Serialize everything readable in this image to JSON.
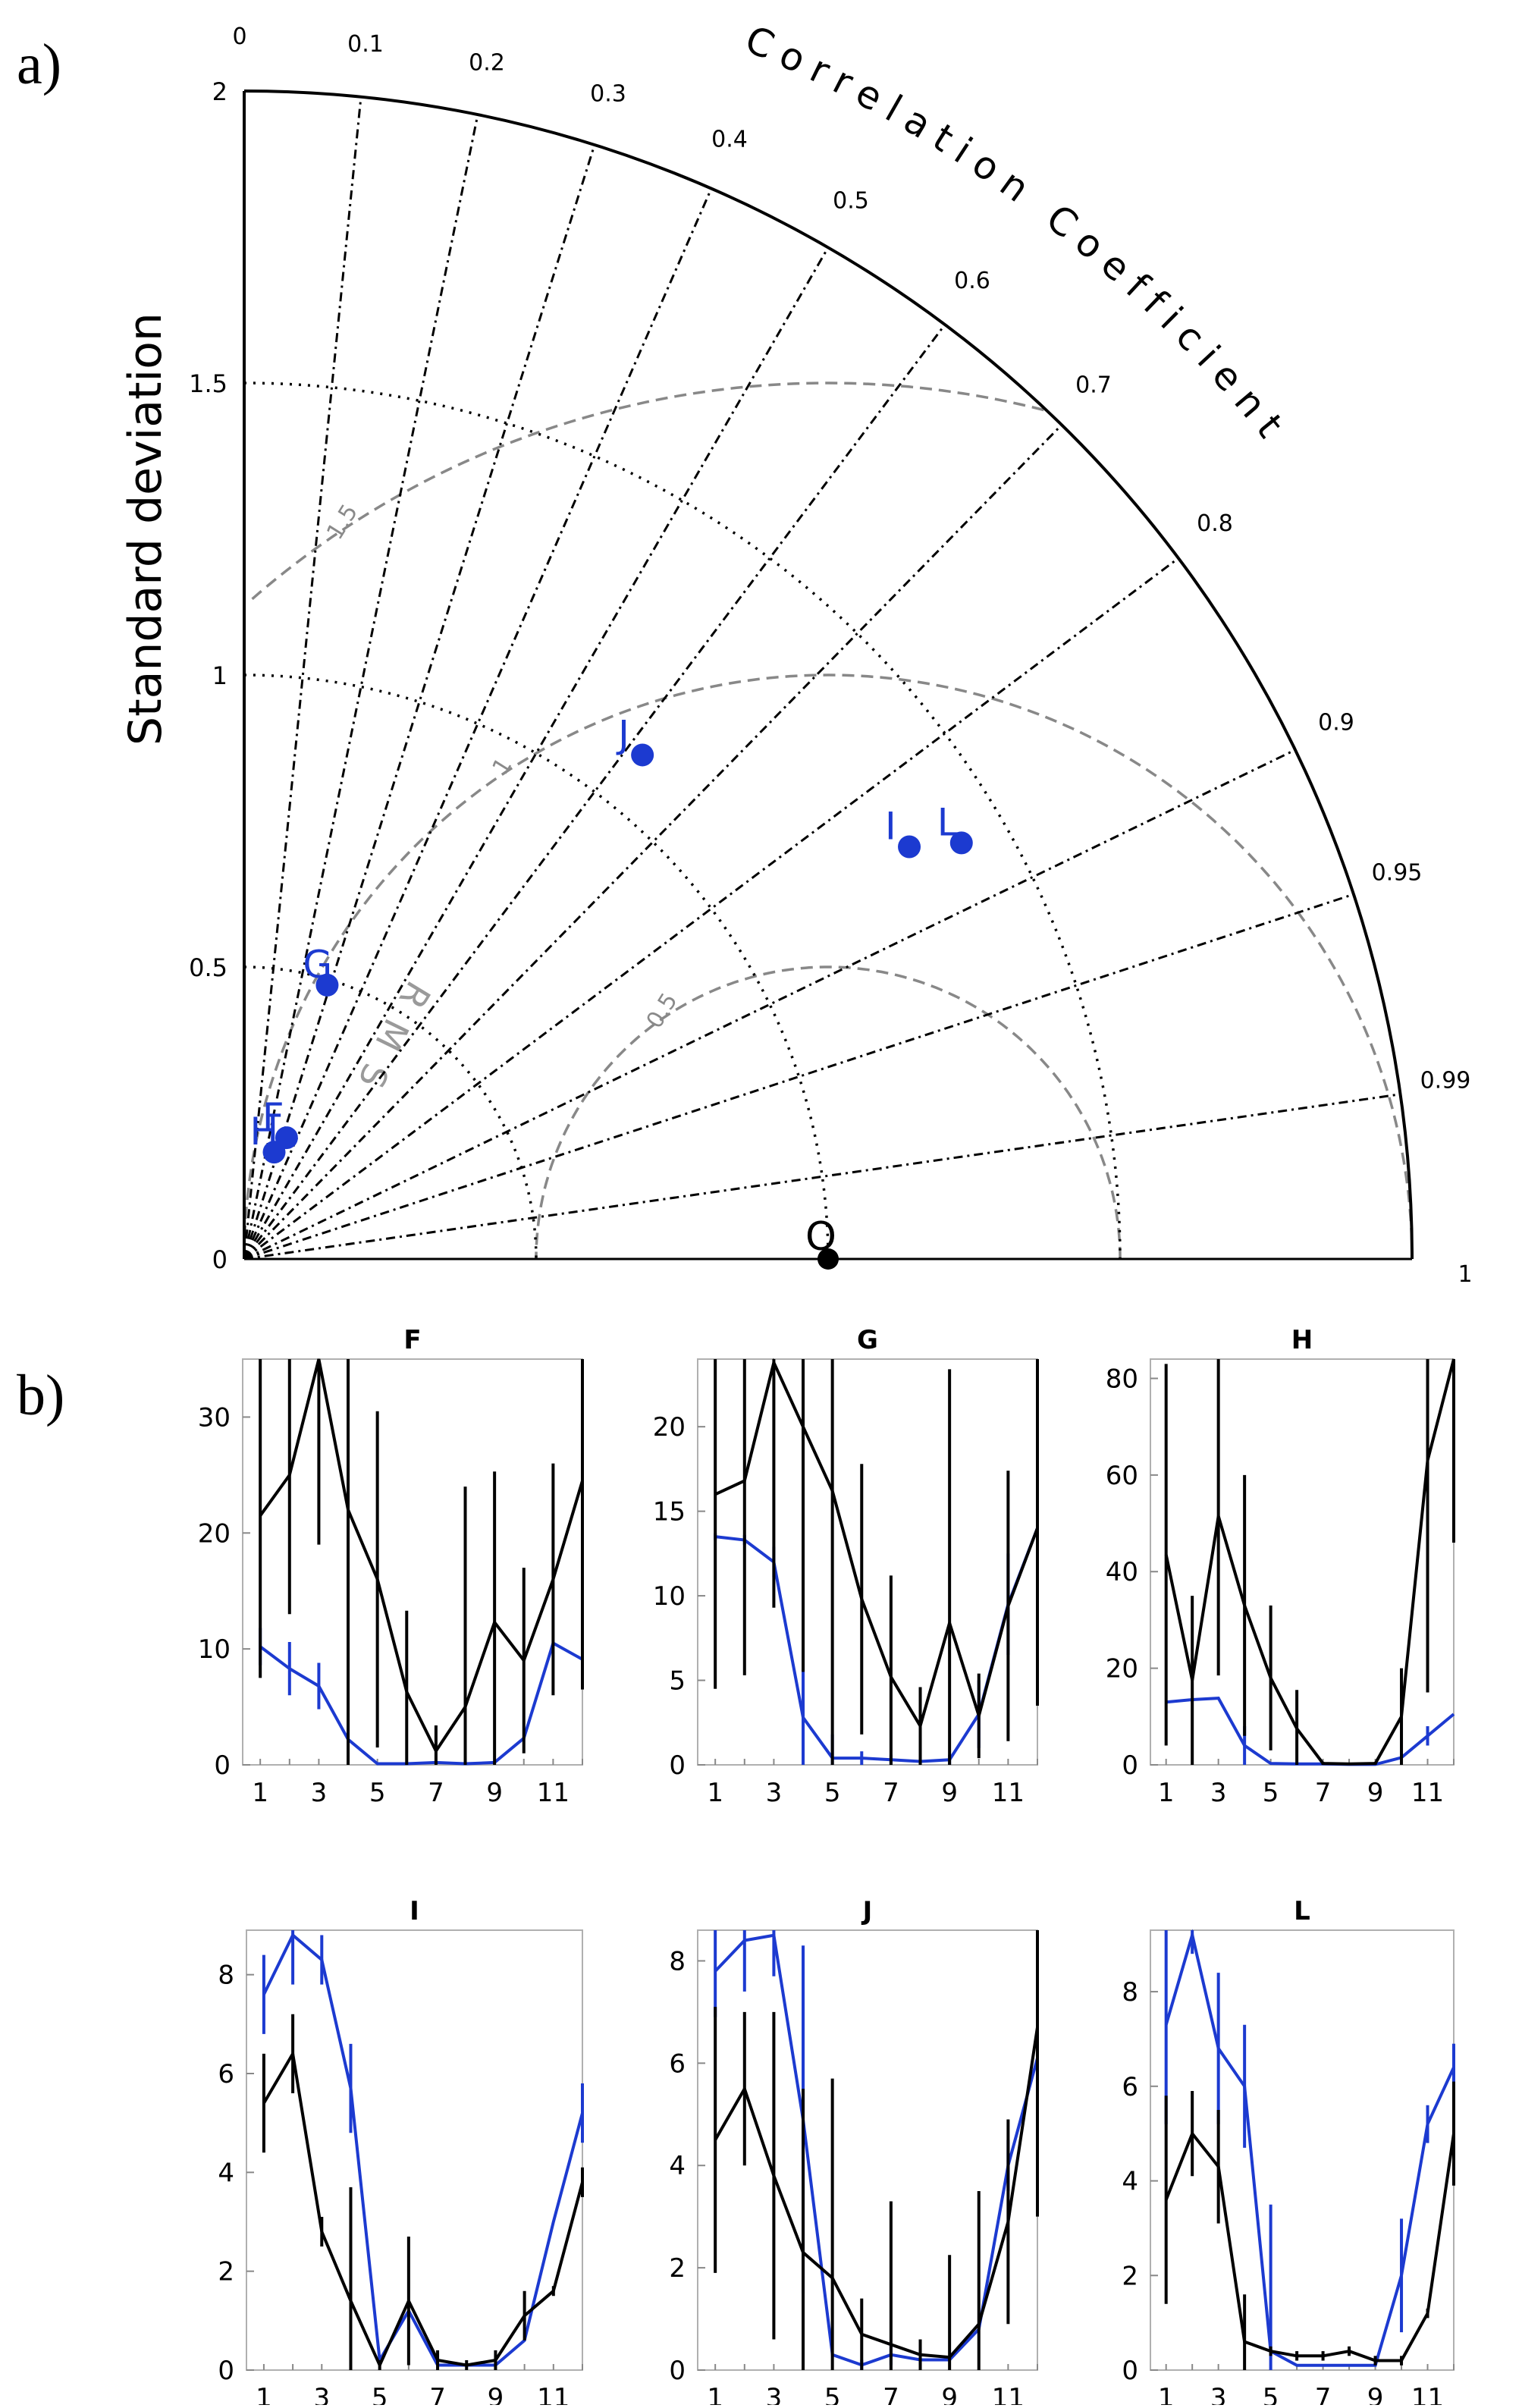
{
  "panels": {
    "a": "a)",
    "b": "b)"
  },
  "chart_data": [
    {
      "type": "taylor",
      "ylabel": "Standard deviation",
      "correlation_label": "Correlation Coefficient",
      "std_ticks": [
        {
          "value": 0,
          "label": "0"
        },
        {
          "value": 0.5,
          "label": "0.5"
        },
        {
          "value": 1,
          "label": "1"
        },
        {
          "value": 1.5,
          "label": "1.5"
        },
        {
          "value": 2,
          "label": "2"
        }
      ],
      "corr_ticks": [
        {
          "value": 0,
          "label": "0"
        },
        {
          "value": 0.1,
          "label": "0.1"
        },
        {
          "value": 0.2,
          "label": "0.2"
        },
        {
          "value": 0.3,
          "label": "0.3"
        },
        {
          "value": 0.4,
          "label": "0.4"
        },
        {
          "value": 0.5,
          "label": "0.5"
        },
        {
          "value": 0.6,
          "label": "0.6"
        },
        {
          "value": 0.7,
          "label": "0.7"
        },
        {
          "value": 0.8,
          "label": "0.8"
        },
        {
          "value": 0.9,
          "label": "0.9"
        },
        {
          "value": 0.95,
          "label": "0.95"
        },
        {
          "value": 0.99,
          "label": "0.99"
        },
        {
          "value": 1,
          "label": "1"
        }
      ],
      "rmsd_ticks": [
        {
          "value": 0.5,
          "label": "0.5"
        },
        {
          "value": 1,
          "label": "1"
        },
        {
          "value": 1.5,
          "label": "1.5"
        }
      ],
      "rmsd_title": "RMSD",
      "std_max": 2,
      "reference": {
        "name": "O",
        "std": 1
      },
      "points": [
        {
          "name": "F",
          "std": 0.22,
          "corr": 0.33
        },
        {
          "name": "G",
          "std": 0.49,
          "corr": 0.29
        },
        {
          "name": "H",
          "std": 0.19,
          "corr": 0.27
        },
        {
          "name": "J",
          "std": 1.1,
          "corr": 0.62
        },
        {
          "name": "I",
          "std": 1.34,
          "corr": 0.85
        },
        {
          "name": "L",
          "std": 1.42,
          "corr": 0.865
        }
      ]
    },
    {
      "type": "line",
      "title": "F",
      "x": [
        1,
        2,
        3,
        4,
        5,
        6,
        7,
        8,
        9,
        10,
        11,
        12
      ],
      "xticks": [
        "1",
        "3",
        "5",
        "7",
        "9",
        "11"
      ],
      "ylim": [
        0,
        35
      ],
      "yticks": [
        "0",
        "10",
        "20",
        "30"
      ],
      "series": [
        {
          "name": "black",
          "values": [
            21.5,
            25,
            35,
            22,
            16,
            6.3,
            1.2,
            5,
            12.3,
            9,
            16,
            24.5
          ],
          "errors": [
            14,
            12,
            16,
            25,
            14.5,
            7,
            2.2,
            19,
            13,
            8,
            10,
            18
          ]
        },
        {
          "name": "blue",
          "values": [
            10.2,
            8.3,
            6.8,
            2.2,
            0.1,
            0.1,
            0.2,
            0.1,
            0.2,
            2.3,
            10.5,
            9.1
          ],
          "errors": [
            1.6,
            2.3,
            2,
            0,
            0,
            0,
            0,
            0,
            0,
            0,
            0,
            0
          ]
        }
      ]
    },
    {
      "type": "line",
      "title": "G",
      "x": [
        1,
        2,
        3,
        4,
        5,
        6,
        7,
        8,
        9,
        10,
        11,
        12
      ],
      "xticks": [
        "1",
        "3",
        "5",
        "7",
        "9",
        "11"
      ],
      "ylim": [
        0,
        24
      ],
      "yticks": [
        "0",
        "5",
        "10",
        "15",
        "20"
      ],
      "series": [
        {
          "name": "black",
          "values": [
            16,
            16.8,
            23.8,
            20,
            16.2,
            9.8,
            5.2,
            2.3,
            8.4,
            2.9,
            9.4,
            14
          ],
          "errors": [
            11.5,
            11.5,
            14.5,
            14.5,
            17,
            8,
            6,
            2.3,
            15,
            2.5,
            8,
            10.5
          ]
        },
        {
          "name": "blue",
          "values": [
            13.5,
            13.3,
            12,
            2.8,
            0.4,
            0.4,
            0.3,
            0.2,
            0.3,
            3,
            9.5,
            14
          ],
          "errors": [
            0.2,
            0.3,
            0.9,
            4,
            1.4,
            0.4,
            0.3,
            0.2,
            0.3,
            2,
            3,
            0
          ]
        }
      ]
    },
    {
      "type": "line",
      "title": "H",
      "x": [
        1,
        2,
        3,
        4,
        5,
        6,
        7,
        8,
        9,
        10,
        11,
        12
      ],
      "xticks": [
        "1",
        "3",
        "5",
        "7",
        "9",
        "11"
      ],
      "ylim": [
        0,
        84
      ],
      "yticks": [
        "0",
        "20",
        "40",
        "60",
        "80"
      ],
      "series": [
        {
          "name": "black",
          "values": [
            43.5,
            17.5,
            51.5,
            33,
            18,
            7.5,
            0.3,
            0.2,
            0.3,
            10,
            63,
            84
          ],
          "errors": [
            39.5,
            17.5,
            33,
            27,
            15,
            8,
            0.3,
            0.2,
            0.3,
            10,
            48,
            38
          ]
        },
        {
          "name": "blue",
          "values": [
            13,
            13.5,
            13.8,
            4,
            0.3,
            0.2,
            0.2,
            0.1,
            0.1,
            1.5,
            6,
            10.5
          ],
          "errors": [
            0,
            0,
            0,
            4,
            0,
            0,
            0,
            0,
            0,
            0,
            2,
            0
          ]
        }
      ]
    },
    {
      "type": "line",
      "title": "I",
      "x": [
        1,
        2,
        3,
        4,
        5,
        6,
        7,
        8,
        9,
        10,
        11,
        12
      ],
      "xticks": [
        "1",
        "3",
        "5",
        "7",
        "9",
        "11"
      ],
      "ylim": [
        0,
        8.9
      ],
      "yticks": [
        "0",
        "2",
        "4",
        "6",
        "8"
      ],
      "series": [
        {
          "name": "black",
          "values": [
            5.4,
            6.4,
            2.8,
            1.4,
            0.1,
            1.4,
            0.2,
            0.1,
            0.2,
            1.1,
            1.6,
            3.8
          ],
          "errors": [
            1,
            0.8,
            0.3,
            2.3,
            0.1,
            1.3,
            0.2,
            0.1,
            0.2,
            0.5,
            0.1,
            0.3
          ]
        },
        {
          "name": "blue",
          "values": [
            7.6,
            8.8,
            8.3,
            5.7,
            0.2,
            1.2,
            0.1,
            0.1,
            0.1,
            0.6,
            3,
            5.2
          ],
          "errors": [
            0.8,
            1,
            0.5,
            0.9,
            0,
            0,
            0,
            0,
            0,
            0,
            0,
            0.6
          ]
        }
      ]
    },
    {
      "type": "line",
      "title": "J",
      "x": [
        1,
        2,
        3,
        4,
        5,
        6,
        7,
        8,
        9,
        10,
        11,
        12
      ],
      "xticks": [
        "1",
        "3",
        "5",
        "7",
        "9",
        "11"
      ],
      "ylim": [
        0,
        8.6
      ],
      "yticks": [
        "0",
        "2",
        "4",
        "6",
        "8"
      ],
      "series": [
        {
          "name": "black",
          "values": [
            4.5,
            5.5,
            3.8,
            2.3,
            1.8,
            0.7,
            0.5,
            0.3,
            0.25,
            0.9,
            2.9,
            6.7
          ],
          "errors": [
            2.6,
            1.5,
            3.2,
            3.2,
            3.9,
            0.7,
            2.8,
            0.3,
            2,
            2.6,
            2,
            3.7
          ]
        },
        {
          "name": "blue",
          "values": [
            7.8,
            8.4,
            8.5,
            4.9,
            0.3,
            0.1,
            0.3,
            0.2,
            0.2,
            0.8,
            4,
            6.1
          ],
          "errors": [
            0.9,
            1,
            0.8,
            3.4,
            0,
            0.1,
            0.2,
            0.1,
            0,
            0,
            0.5,
            0
          ]
        }
      ]
    },
    {
      "type": "line",
      "title": "L",
      "x": [
        1,
        2,
        3,
        4,
        5,
        6,
        7,
        8,
        9,
        10,
        11,
        12
      ],
      "xticks": [
        "1",
        "3",
        "5",
        "7",
        "9",
        "11"
      ],
      "ylim": [
        0,
        9.3
      ],
      "yticks": [
        "0",
        "2",
        "4",
        "6",
        "8"
      ],
      "series": [
        {
          "name": "black",
          "values": [
            3.6,
            5,
            4.3,
            0.6,
            0.4,
            0.3,
            0.3,
            0.4,
            0.2,
            0.2,
            1.2,
            5
          ],
          "errors": [
            2.2,
            0.9,
            1.2,
            1,
            0.1,
            0.1,
            0.1,
            0.1,
            0.1,
            0.1,
            0.1,
            1.1
          ]
        },
        {
          "name": "blue",
          "values": [
            7.3,
            9.2,
            6.8,
            6,
            0.4,
            0.1,
            0.1,
            0.1,
            0.1,
            2,
            5.2,
            6.4
          ],
          "errors": [
            2.1,
            0.4,
            1.6,
            1.3,
            3.1,
            0,
            0,
            0,
            0,
            1.2,
            0.4,
            0.5
          ]
        }
      ]
    }
  ]
}
